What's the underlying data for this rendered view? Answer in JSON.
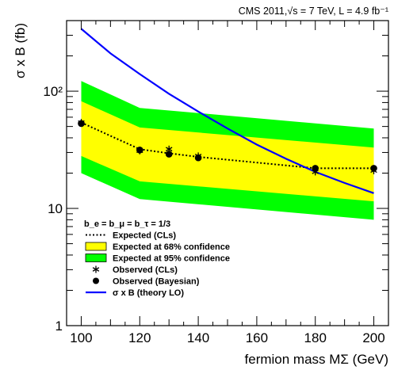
{
  "chart_data": {
    "type": "line",
    "title": "CMS 2011,√s = 7 TeV, L = 4.9 fb⁻¹",
    "xlabel": "fermion mass MΣ (GeV)",
    "ylabel": "σ x B (fb)",
    "xlim": [
      95,
      205
    ],
    "ylim": [
      1,
      400
    ],
    "yscale": "log",
    "x_ticks": [
      "100",
      "120",
      "140",
      "160",
      "180",
      "200"
    ],
    "y_ticks": [
      {
        "value": 1,
        "label": "1"
      },
      {
        "value": 10,
        "label": "10"
      },
      {
        "value": 100,
        "label": "10²"
      }
    ],
    "legend_header": "b_e = b_μ = b_τ = 1/3",
    "series": [
      {
        "name": "Expected at 95% confidence",
        "kind": "band",
        "color": "#00ff00",
        "x": [
          100,
          120,
          200
        ],
        "lower": [
          20,
          12,
          8
        ],
        "upper": [
          122,
          72,
          48
        ]
      },
      {
        "name": "Expected at 68% confidence",
        "kind": "band",
        "color": "#ffff00",
        "x": [
          100,
          120,
          200
        ],
        "lower": [
          28,
          17,
          11.5
        ],
        "upper": [
          82,
          49,
          33
        ]
      },
      {
        "name": "Expected (CLs)",
        "kind": "dotted-line",
        "color": "#000000",
        "x": [
          100,
          120,
          130,
          140,
          180,
          200
        ],
        "values": [
          54,
          32,
          29.5,
          27.5,
          22,
          22
        ]
      },
      {
        "name": "Observed (CLs)",
        "kind": "star",
        "color": "#000000",
        "x": [
          100,
          120,
          130,
          140,
          180,
          200
        ],
        "values": [
          54,
          31,
          32,
          28,
          20.5,
          21
        ]
      },
      {
        "name": "Observed (Bayesian)",
        "kind": "dot",
        "color": "#000000",
        "x": [
          100,
          120,
          130,
          140,
          180,
          200
        ],
        "values": [
          53,
          31.5,
          29,
          27,
          22,
          22
        ]
      },
      {
        "name": "σ x B (theory LO)",
        "kind": "line",
        "color": "#0000ff",
        "x": [
          100,
          110,
          120,
          130,
          140,
          150,
          160,
          170,
          180,
          190,
          200
        ],
        "values": [
          340,
          210,
          140,
          95,
          67,
          48,
          35,
          26.5,
          20.5,
          16.5,
          13.5
        ]
      }
    ]
  }
}
